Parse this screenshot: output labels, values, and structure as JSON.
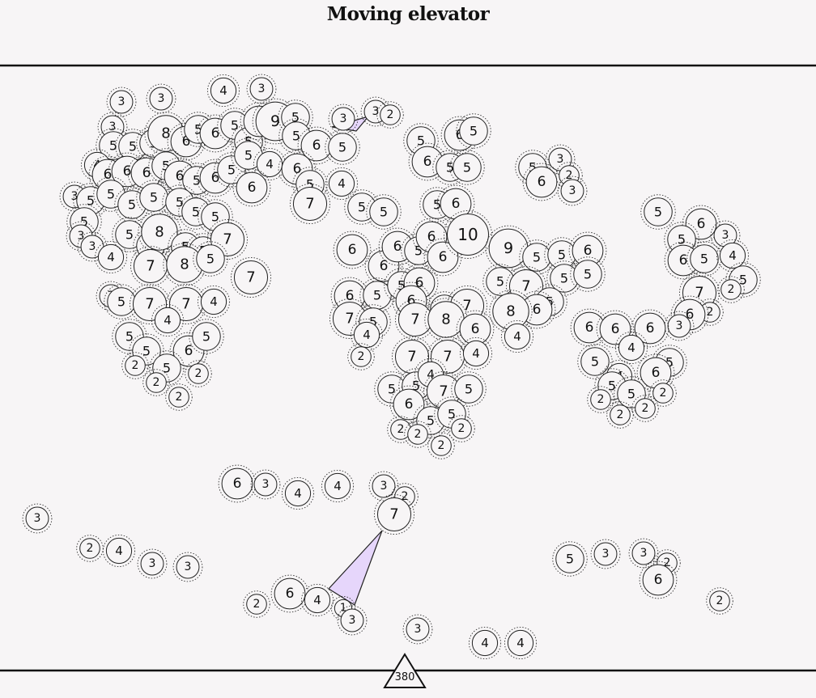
{
  "title": "Moving elevator",
  "elevator_label": "380",
  "nodes": [
    [
      150,
      126,
      3
    ],
    [
      199,
      122,
      3
    ],
    [
      276,
      112,
      4
    ],
    [
      323,
      110,
      3
    ],
    [
      139,
      157,
      3
    ],
    [
      140,
      180,
      5
    ],
    [
      164,
      181,
      5
    ],
    [
      190,
      177,
      5
    ],
    [
      205,
      165,
      8
    ],
    [
      230,
      175,
      6
    ],
    [
      245,
      160,
      5
    ],
    [
      266,
      165,
      6
    ],
    [
      290,
      155,
      5
    ],
    [
      307,
      175,
      5
    ],
    [
      320,
      150,
      6
    ],
    [
      340,
      150,
      9
    ],
    [
      365,
      145,
      5
    ],
    [
      366,
      168,
      5
    ],
    [
      391,
      180,
      6
    ],
    [
      423,
      182,
      5
    ],
    [
      424,
      147,
      3
    ],
    [
      464,
      138,
      3
    ],
    [
      482,
      142,
      2
    ],
    [
      120,
      204,
      4
    ],
    [
      133,
      216,
      6
    ],
    [
      157,
      212,
      6
    ],
    [
      181,
      214,
      6
    ],
    [
      205,
      205,
      5
    ],
    [
      222,
      218,
      6
    ],
    [
      243,
      223,
      5
    ],
    [
      266,
      220,
      6
    ],
    [
      286,
      210,
      5
    ],
    [
      307,
      192,
      5
    ],
    [
      333,
      203,
      4
    ],
    [
      367,
      209,
      6
    ],
    [
      311,
      232,
      6
    ],
    [
      92,
      243,
      3
    ],
    [
      112,
      248,
      5
    ],
    [
      137,
      240,
      5
    ],
    [
      163,
      253,
      5
    ],
    [
      190,
      244,
      5
    ],
    [
      222,
      250,
      5
    ],
    [
      242,
      262,
      5
    ],
    [
      266,
      268,
      5
    ],
    [
      383,
      228,
      5
    ],
    [
      422,
      227,
      4
    ],
    [
      383,
      252,
      7
    ],
    [
      447,
      256,
      5
    ],
    [
      474,
      262,
      5
    ],
    [
      104,
      274,
      5
    ],
    [
      100,
      292,
      3
    ],
    [
      114,
      305,
      3
    ],
    [
      137,
      318,
      4
    ],
    [
      160,
      290,
      5
    ],
    [
      186,
      304,
      5
    ],
    [
      197,
      287,
      8
    ],
    [
      229,
      305,
      5
    ],
    [
      251,
      310,
      5
    ],
    [
      281,
      296,
      7
    ],
    [
      186,
      329,
      7
    ],
    [
      228,
      327,
      8
    ],
    [
      260,
      320,
      5
    ],
    [
      310,
      343,
      7
    ],
    [
      137,
      366,
      3
    ],
    [
      150,
      373,
      5
    ],
    [
      185,
      376,
      7
    ],
    [
      230,
      376,
      7
    ],
    [
      264,
      373,
      4
    ],
    [
      207,
      396,
      4
    ],
    [
      160,
      416,
      5
    ],
    [
      181,
      434,
      5
    ],
    [
      233,
      434,
      6
    ],
    [
      255,
      416,
      5
    ],
    [
      167,
      452,
      2
    ],
    [
      206,
      455,
      5
    ],
    [
      245,
      462,
      2
    ],
    [
      193,
      473,
      2
    ],
    [
      221,
      491,
      2
    ],
    [
      520,
      174,
      5
    ],
    [
      568,
      167,
      6
    ],
    [
      585,
      162,
      5
    ],
    [
      528,
      200,
      6
    ],
    [
      556,
      207,
      5
    ],
    [
      577,
      207,
      5
    ],
    [
      658,
      207,
      5
    ],
    [
      692,
      197,
      3
    ],
    [
      703,
      217,
      2
    ],
    [
      669,
      225,
      6
    ],
    [
      707,
      236,
      3
    ],
    [
      540,
      253,
      5
    ],
    [
      563,
      252,
      6
    ],
    [
      435,
      309,
      6
    ],
    [
      474,
      329,
      6
    ],
    [
      491,
      305,
      6
    ],
    [
      517,
      310,
      5
    ],
    [
      533,
      293,
      6
    ],
    [
      547,
      318,
      6
    ],
    [
      578,
      290,
      10
    ],
    [
      628,
      307,
      9
    ],
    [
      663,
      318,
      5
    ],
    [
      694,
      315,
      5
    ],
    [
      726,
      310,
      6
    ],
    [
      432,
      366,
      6
    ],
    [
      466,
      365,
      5
    ],
    [
      496,
      353,
      5
    ],
    [
      518,
      350,
      6
    ],
    [
      508,
      372,
      6
    ],
    [
      549,
      382,
      5
    ],
    [
      577,
      378,
      7
    ],
    [
      618,
      348,
      5
    ],
    [
      650,
      354,
      7
    ],
    [
      697,
      344,
      5
    ],
    [
      726,
      339,
      5
    ],
    [
      679,
      373,
      5
    ],
    [
      663,
      383,
      6
    ],
    [
      631,
      385,
      8
    ],
    [
      432,
      394,
      7
    ],
    [
      461,
      398,
      5
    ],
    [
      453,
      414,
      4
    ],
    [
      513,
      395,
      7
    ],
    [
      551,
      395,
      8
    ],
    [
      587,
      407,
      6
    ],
    [
      639,
      416,
      4
    ],
    [
      446,
      441,
      2
    ],
    [
      509,
      441,
      7
    ],
    [
      553,
      441,
      7
    ],
    [
      588,
      437,
      4
    ],
    [
      484,
      481,
      5
    ],
    [
      514,
      477,
      5
    ],
    [
      532,
      463,
      4
    ],
    [
      548,
      484,
      7
    ],
    [
      579,
      481,
      5
    ],
    [
      505,
      500,
      6
    ],
    [
      532,
      520,
      5
    ],
    [
      558,
      512,
      5
    ],
    [
      570,
      530,
      2
    ],
    [
      495,
      531,
      2
    ],
    [
      516,
      537,
      2
    ],
    [
      545,
      551,
      2
    ],
    [
      813,
      262,
      5
    ],
    [
      866,
      277,
      6
    ],
    [
      896,
      291,
      3
    ],
    [
      842,
      296,
      5
    ],
    [
      844,
      322,
      6
    ],
    [
      870,
      320,
      5
    ],
    [
      905,
      316,
      4
    ],
    [
      918,
      346,
      5
    ],
    [
      903,
      358,
      2
    ],
    [
      864,
      362,
      7
    ],
    [
      877,
      386,
      2
    ],
    [
      852,
      389,
      6
    ],
    [
      839,
      403,
      3
    ],
    [
      728,
      405,
      6
    ],
    [
      760,
      407,
      6
    ],
    [
      803,
      406,
      6
    ],
    [
      780,
      430,
      4
    ],
    [
      735,
      447,
      5
    ],
    [
      827,
      448,
      5
    ],
    [
      810,
      461,
      6
    ],
    [
      765,
      465,
      4
    ],
    [
      756,
      477,
      5
    ],
    [
      780,
      487,
      5
    ],
    [
      819,
      486,
      2
    ],
    [
      742,
      494,
      2
    ],
    [
      797,
      505,
      2
    ],
    [
      766,
      513,
      2
    ],
    [
      293,
      598,
      6
    ],
    [
      328,
      599,
      3
    ],
    [
      368,
      610,
      4
    ],
    [
      417,
      601,
      4
    ],
    [
      474,
      601,
      3
    ],
    [
      500,
      614,
      2
    ],
    [
      487,
      636,
      7
    ],
    [
      46,
      641,
      3
    ],
    [
      111,
      678,
      2
    ],
    [
      147,
      681,
      4
    ],
    [
      188,
      697,
      3
    ],
    [
      232,
      701,
      3
    ],
    [
      704,
      691,
      5
    ],
    [
      748,
      685,
      3
    ],
    [
      795,
      684,
      3
    ],
    [
      824,
      696,
      2
    ],
    [
      813,
      717,
      6
    ],
    [
      889,
      743,
      2
    ],
    [
      317,
      747,
      2
    ],
    [
      358,
      734,
      6
    ],
    [
      392,
      742,
      4
    ],
    [
      424,
      752,
      1
    ],
    [
      435,
      767,
      3
    ],
    [
      516,
      778,
      3
    ],
    [
      599,
      795,
      4
    ],
    [
      643,
      795,
      4
    ]
  ],
  "links": [
    [
      [
        410,
        157
      ],
      [
        455,
        144
      ],
      [
        440,
        162
      ]
    ],
    [
      [
        472,
        656
      ],
      [
        406,
        728
      ],
      [
        438,
        748
      ]
    ]
  ]
}
